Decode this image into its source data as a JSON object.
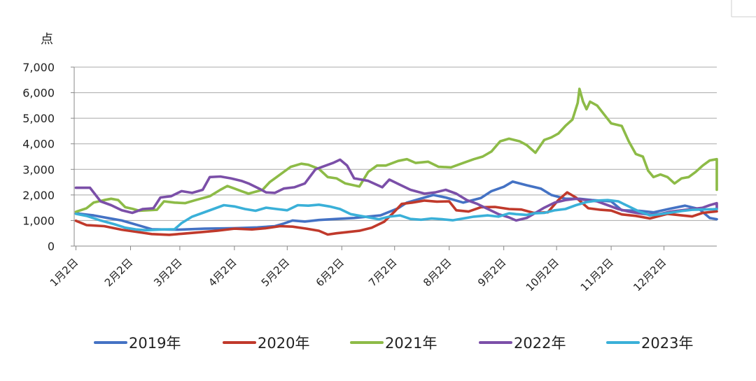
{
  "chart_data": {
    "type": "line",
    "unit_label": "点",
    "ylim": [
      0,
      7000
    ],
    "y_ticks": [
      {
        "value": 0,
        "label": "0"
      },
      {
        "value": 1000,
        "label": "1,000"
      },
      {
        "value": 2000,
        "label": "2,000"
      },
      {
        "value": 3000,
        "label": "3,000"
      },
      {
        "value": 4000,
        "label": "4,000"
      },
      {
        "value": 5000,
        "label": "5,000"
      },
      {
        "value": 6000,
        "label": "6,000"
      },
      {
        "value": 7000,
        "label": "7,000"
      }
    ],
    "x_unit": "day of year",
    "xlim": [
      1,
      366
    ],
    "x_ticks": [
      {
        "value": 2,
        "label": "1月2日"
      },
      {
        "value": 33,
        "label": "2月2日"
      },
      {
        "value": 61,
        "label": "3月2日"
      },
      {
        "value": 92,
        "label": "4月2日"
      },
      {
        "value": 122,
        "label": "5月2日"
      },
      {
        "value": 153,
        "label": "6月2日"
      },
      {
        "value": 183,
        "label": "7月2日"
      },
      {
        "value": 214,
        "label": "8月2日"
      },
      {
        "value": 245,
        "label": "9月2日"
      },
      {
        "value": 275,
        "label": "10月2日"
      },
      {
        "value": 306,
        "label": "11月2日"
      },
      {
        "value": 336,
        "label": "12月2日"
      }
    ],
    "grid": "horizontal",
    "legend_position": "bottom",
    "series": [
      {
        "name": "2019年",
        "color": "#4472c4",
        "points": [
          [
            2,
            1280
          ],
          [
            12,
            1200
          ],
          [
            20,
            1100
          ],
          [
            28,
            1000
          ],
          [
            38,
            800
          ],
          [
            45,
            660
          ],
          [
            60,
            640
          ],
          [
            75,
            680
          ],
          [
            92,
            700
          ],
          [
            105,
            730
          ],
          [
            115,
            780
          ],
          [
            120,
            880
          ],
          [
            125,
            1000
          ],
          [
            132,
            960
          ],
          [
            140,
            1020
          ],
          [
            150,
            1060
          ],
          [
            160,
            1100
          ],
          [
            175,
            1200
          ],
          [
            185,
            1480
          ],
          [
            190,
            1700
          ],
          [
            198,
            1860
          ],
          [
            205,
            2000
          ],
          [
            212,
            1900
          ],
          [
            222,
            1700
          ],
          [
            232,
            1880
          ],
          [
            238,
            2150
          ],
          [
            245,
            2320
          ],
          [
            250,
            2520
          ],
          [
            258,
            2380
          ],
          [
            266,
            2250
          ],
          [
            272,
            2000
          ],
          [
            280,
            1850
          ],
          [
            288,
            1850
          ],
          [
            295,
            1800
          ],
          [
            306,
            1750
          ],
          [
            312,
            1400
          ],
          [
            322,
            1380
          ],
          [
            330,
            1320
          ],
          [
            340,
            1470
          ],
          [
            348,
            1580
          ],
          [
            356,
            1450
          ],
          [
            362,
            1100
          ],
          [
            366,
            1050
          ]
        ]
      },
      {
        "name": "2020年",
        "color": "#c0392b",
        "points": [
          [
            2,
            990
          ],
          [
            8,
            820
          ],
          [
            18,
            780
          ],
          [
            28,
            640
          ],
          [
            36,
            560
          ],
          [
            45,
            470
          ],
          [
            55,
            440
          ],
          [
            62,
            480
          ],
          [
            72,
            540
          ],
          [
            82,
            600
          ],
          [
            92,
            680
          ],
          [
            102,
            650
          ],
          [
            110,
            700
          ],
          [
            118,
            780
          ],
          [
            125,
            760
          ],
          [
            133,
            680
          ],
          [
            140,
            600
          ],
          [
            145,
            450
          ],
          [
            150,
            500
          ],
          [
            155,
            540
          ],
          [
            163,
            600
          ],
          [
            170,
            720
          ],
          [
            177,
            950
          ],
          [
            183,
            1350
          ],
          [
            187,
            1650
          ],
          [
            193,
            1700
          ],
          [
            200,
            1780
          ],
          [
            207,
            1740
          ],
          [
            214,
            1750
          ],
          [
            218,
            1400
          ],
          [
            225,
            1350
          ],
          [
            232,
            1520
          ],
          [
            240,
            1530
          ],
          [
            248,
            1450
          ],
          [
            255,
            1430
          ],
          [
            262,
            1300
          ],
          [
            270,
            1320
          ],
          [
            276,
            1800
          ],
          [
            281,
            2100
          ],
          [
            286,
            1900
          ],
          [
            293,
            1480
          ],
          [
            300,
            1420
          ],
          [
            306,
            1390
          ],
          [
            312,
            1240
          ],
          [
            320,
            1180
          ],
          [
            328,
            1080
          ],
          [
            338,
            1260
          ],
          [
            346,
            1200
          ],
          [
            352,
            1160
          ],
          [
            358,
            1300
          ],
          [
            366,
            1360
          ]
        ]
      },
      {
        "name": "2021年",
        "color": "#8dbb47",
        "points": [
          [
            2,
            1340
          ],
          [
            8,
            1480
          ],
          [
            12,
            1700
          ],
          [
            18,
            1800
          ],
          [
            22,
            1850
          ],
          [
            26,
            1800
          ],
          [
            30,
            1520
          ],
          [
            34,
            1460
          ],
          [
            38,
            1380
          ],
          [
            48,
            1420
          ],
          [
            52,
            1750
          ],
          [
            58,
            1700
          ],
          [
            64,
            1680
          ],
          [
            70,
            1800
          ],
          [
            78,
            1950
          ],
          [
            84,
            2200
          ],
          [
            88,
            2350
          ],
          [
            92,
            2250
          ],
          [
            96,
            2150
          ],
          [
            100,
            2050
          ],
          [
            108,
            2200
          ],
          [
            112,
            2500
          ],
          [
            118,
            2800
          ],
          [
            124,
            3100
          ],
          [
            130,
            3220
          ],
          [
            134,
            3180
          ],
          [
            140,
            3020
          ],
          [
            145,
            2700
          ],
          [
            150,
            2650
          ],
          [
            155,
            2450
          ],
          [
            163,
            2330
          ],
          [
            168,
            2900
          ],
          [
            173,
            3150
          ],
          [
            178,
            3150
          ],
          [
            185,
            3330
          ],
          [
            190,
            3400
          ],
          [
            195,
            3250
          ],
          [
            202,
            3300
          ],
          [
            208,
            3100
          ],
          [
            215,
            3080
          ],
          [
            222,
            3250
          ],
          [
            228,
            3400
          ],
          [
            233,
            3500
          ],
          [
            238,
            3700
          ],
          [
            243,
            4100
          ],
          [
            248,
            4200
          ],
          [
            254,
            4100
          ],
          [
            258,
            3950
          ],
          [
            263,
            3650
          ],
          [
            268,
            4150
          ],
          [
            272,
            4250
          ],
          [
            276,
            4400
          ],
          [
            280,
            4700
          ],
          [
            284,
            4950
          ],
          [
            287,
            5600
          ],
          [
            288,
            6150
          ],
          [
            290,
            5650
          ],
          [
            292,
            5350
          ],
          [
            294,
            5650
          ],
          [
            298,
            5500
          ],
          [
            302,
            5150
          ],
          [
            306,
            4800
          ],
          [
            312,
            4700
          ],
          [
            316,
            4100
          ],
          [
            320,
            3600
          ],
          [
            324,
            3500
          ],
          [
            327,
            2950
          ],
          [
            330,
            2700
          ],
          [
            334,
            2800
          ],
          [
            338,
            2700
          ],
          [
            342,
            2450
          ],
          [
            346,
            2650
          ],
          [
            350,
            2700
          ],
          [
            354,
            2900
          ],
          [
            358,
            3150
          ],
          [
            362,
            3350
          ],
          [
            366,
            3400
          ],
          [
            370,
            3150
          ],
          [
            374,
            2450
          ],
          [
            378,
            2350
          ],
          [
            382,
            2200
          ]
        ]
      },
      {
        "name": "2022年",
        "color": "#7b4fa8",
        "points": [
          [
            2,
            2280
          ],
          [
            10,
            2280
          ],
          [
            16,
            1750
          ],
          [
            22,
            1600
          ],
          [
            28,
            1400
          ],
          [
            34,
            1300
          ],
          [
            40,
            1450
          ],
          [
            46,
            1480
          ],
          [
            50,
            1900
          ],
          [
            56,
            1950
          ],
          [
            62,
            2150
          ],
          [
            68,
            2080
          ],
          [
            74,
            2200
          ],
          [
            78,
            2700
          ],
          [
            84,
            2720
          ],
          [
            90,
            2650
          ],
          [
            96,
            2550
          ],
          [
            100,
            2450
          ],
          [
            106,
            2250
          ],
          [
            110,
            2100
          ],
          [
            115,
            2080
          ],
          [
            120,
            2250
          ],
          [
            126,
            2300
          ],
          [
            132,
            2450
          ],
          [
            138,
            3000
          ],
          [
            142,
            3100
          ],
          [
            148,
            3250
          ],
          [
            152,
            3380
          ],
          [
            156,
            3150
          ],
          [
            160,
            2650
          ],
          [
            168,
            2550
          ],
          [
            176,
            2300
          ],
          [
            180,
            2600
          ],
          [
            186,
            2400
          ],
          [
            192,
            2200
          ],
          [
            200,
            2050
          ],
          [
            206,
            2100
          ],
          [
            212,
            2200
          ],
          [
            218,
            2050
          ],
          [
            224,
            1800
          ],
          [
            230,
            1650
          ],
          [
            236,
            1450
          ],
          [
            242,
            1250
          ],
          [
            248,
            1120
          ],
          [
            252,
            1000
          ],
          [
            258,
            1100
          ],
          [
            263,
            1300
          ],
          [
            268,
            1500
          ],
          [
            274,
            1700
          ],
          [
            280,
            1800
          ],
          [
            286,
            1850
          ],
          [
            292,
            1800
          ],
          [
            298,
            1750
          ],
          [
            304,
            1600
          ],
          [
            310,
            1450
          ],
          [
            316,
            1350
          ],
          [
            322,
            1280
          ],
          [
            328,
            1230
          ],
          [
            334,
            1260
          ],
          [
            340,
            1350
          ],
          [
            346,
            1400
          ],
          [
            352,
            1450
          ],
          [
            358,
            1500
          ],
          [
            362,
            1600
          ],
          [
            366,
            1680
          ],
          [
            368,
            1450
          ]
        ]
      },
      {
        "name": "2023年",
        "color": "#3ab0d8",
        "points": [
          [
            2,
            1260
          ],
          [
            8,
            1180
          ],
          [
            16,
            1000
          ],
          [
            24,
            850
          ],
          [
            30,
            720
          ],
          [
            36,
            650
          ],
          [
            42,
            620
          ],
          [
            48,
            640
          ],
          [
            52,
            650
          ],
          [
            58,
            660
          ],
          [
            62,
            900
          ],
          [
            68,
            1150
          ],
          [
            74,
            1300
          ],
          [
            80,
            1450
          ],
          [
            86,
            1600
          ],
          [
            92,
            1550
          ],
          [
            98,
            1450
          ],
          [
            104,
            1380
          ],
          [
            110,
            1500
          ],
          [
            116,
            1450
          ],
          [
            122,
            1400
          ],
          [
            128,
            1600
          ],
          [
            134,
            1580
          ],
          [
            140,
            1620
          ],
          [
            146,
            1550
          ],
          [
            152,
            1450
          ],
          [
            158,
            1250
          ],
          [
            166,
            1150
          ],
          [
            174,
            1050
          ],
          [
            180,
            1150
          ],
          [
            186,
            1200
          ],
          [
            192,
            1060
          ],
          [
            198,
            1030
          ],
          [
            204,
            1080
          ],
          [
            210,
            1050
          ],
          [
            216,
            1010
          ],
          [
            222,
            1080
          ],
          [
            228,
            1150
          ],
          [
            236,
            1200
          ],
          [
            242,
            1150
          ],
          [
            248,
            1280
          ],
          [
            252,
            1250
          ],
          [
            258,
            1220
          ],
          [
            262,
            1280
          ],
          [
            268,
            1300
          ],
          [
            274,
            1400
          ],
          [
            280,
            1450
          ],
          [
            286,
            1600
          ],
          [
            292,
            1720
          ],
          [
            298,
            1780
          ],
          [
            304,
            1800
          ],
          [
            310,
            1750
          ],
          [
            316,
            1550
          ],
          [
            322,
            1350
          ],
          [
            328,
            1200
          ],
          [
            334,
            1250
          ],
          [
            340,
            1310
          ],
          [
            346,
            1370
          ],
          [
            352,
            1420
          ],
          [
            358,
            1430
          ],
          [
            364,
            1440
          ],
          [
            368,
            1450
          ]
        ]
      }
    ]
  }
}
